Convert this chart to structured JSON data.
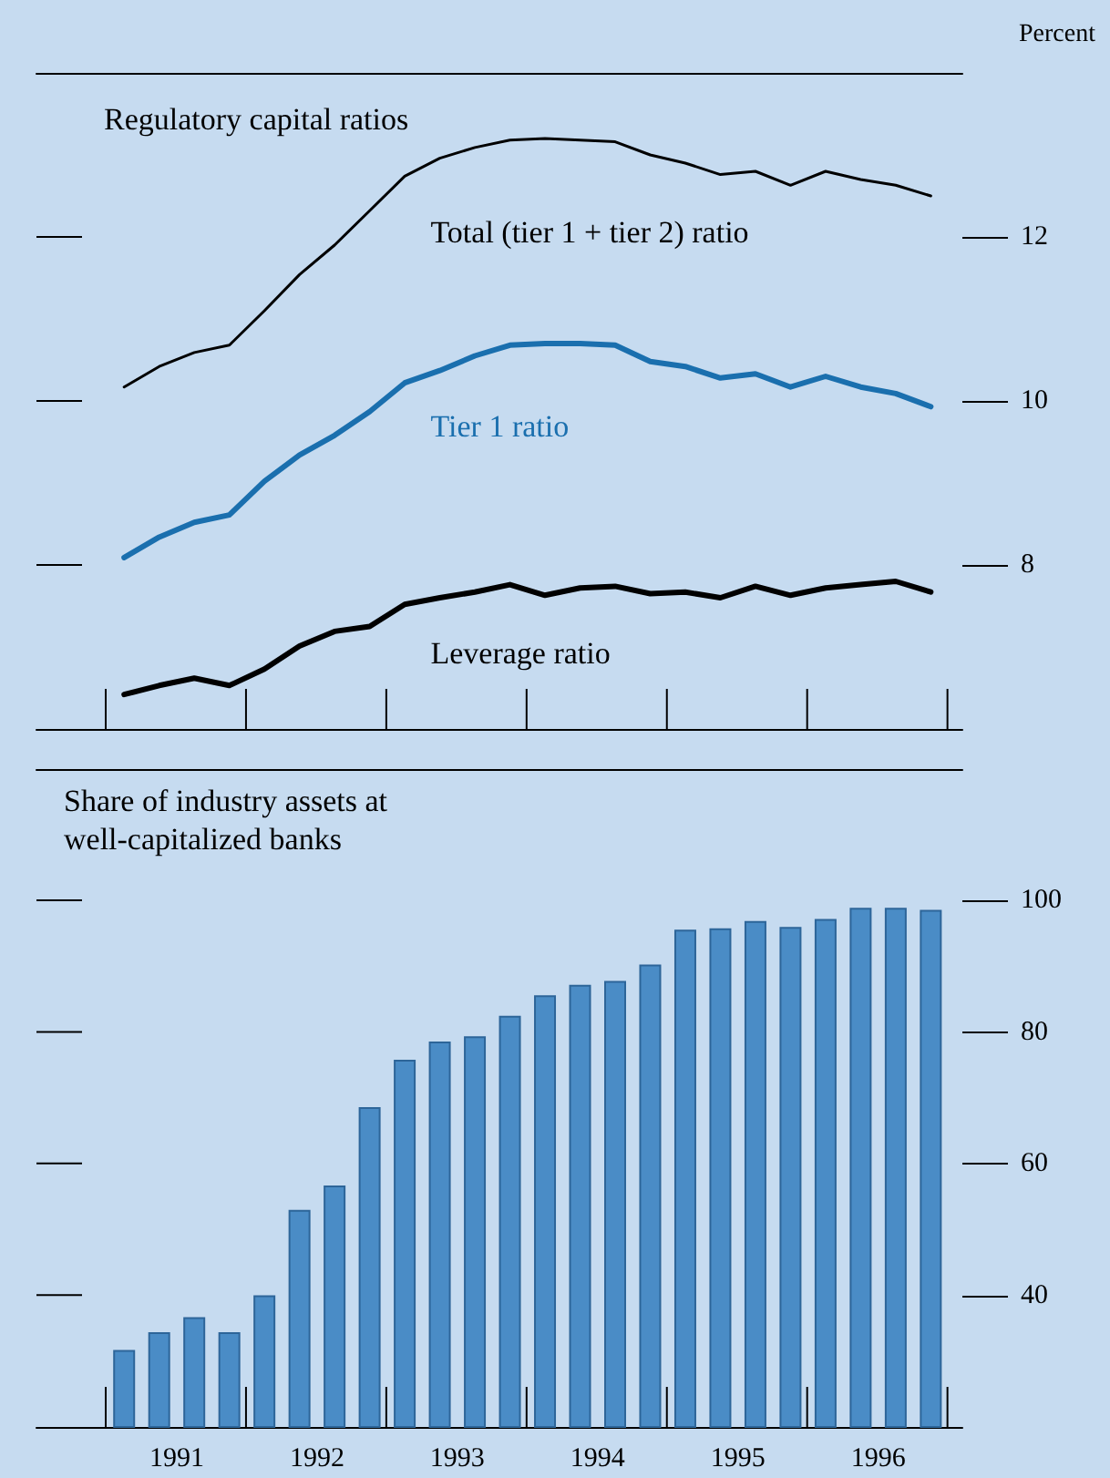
{
  "chart_data": [
    {
      "type": "line",
      "title": "Regulatory capital ratios",
      "ylabel": "Percent",
      "x": [
        1991.125,
        1991.375,
        1991.625,
        1991.875,
        1992.125,
        1992.375,
        1992.625,
        1992.875,
        1993.125,
        1993.375,
        1993.625,
        1993.875,
        1994.125,
        1994.375,
        1994.625,
        1994.875,
        1995.125,
        1995.375,
        1995.625,
        1995.875,
        1996.125,
        1996.375,
        1996.625,
        1996.875
      ],
      "series": [
        {
          "name": "Total (tier 1 + tier 2) ratio",
          "color": "#000000",
          "values": [
            10.17,
            10.42,
            10.59,
            10.68,
            11.1,
            11.54,
            11.9,
            12.32,
            12.74,
            12.96,
            13.09,
            13.18,
            13.2,
            13.18,
            13.16,
            13.0,
            12.9,
            12.76,
            12.8,
            12.63,
            12.8,
            12.7,
            12.63,
            12.5
          ]
        },
        {
          "name": "Tier 1 ratio",
          "color": "#1a6fae",
          "values": [
            8.09,
            8.34,
            8.52,
            8.61,
            9.02,
            9.34,
            9.58,
            9.87,
            10.22,
            10.37,
            10.55,
            10.68,
            10.7,
            10.7,
            10.68,
            10.48,
            10.42,
            10.28,
            10.33,
            10.17,
            10.3,
            10.17,
            10.09,
            9.93
          ]
        },
        {
          "name": "Leverage ratio",
          "color": "#000000",
          "values": [
            6.42,
            6.53,
            6.62,
            6.53,
            6.73,
            7.01,
            7.19,
            7.25,
            7.52,
            7.6,
            7.67,
            7.76,
            7.63,
            7.72,
            7.74,
            7.65,
            7.67,
            7.6,
            7.74,
            7.63,
            7.72,
            7.76,
            7.8,
            7.67
          ]
        }
      ],
      "xlim": [
        1990.5,
        1997.1
      ],
      "ylim": [
        6,
        14
      ],
      "yticks": [
        8,
        10,
        12
      ],
      "tick_labels": "y",
      "grid": false,
      "legend": false,
      "marker": "none",
      "line_style": "solid"
    },
    {
      "type": "bar",
      "title": "Share of industry assets at\nwell-capitalized banks",
      "color": "#4a8cc6",
      "x": [
        1991.125,
        1991.375,
        1991.625,
        1991.875,
        1992.125,
        1992.375,
        1992.625,
        1992.875,
        1993.125,
        1993.375,
        1993.625,
        1993.875,
        1994.125,
        1994.375,
        1994.625,
        1994.875,
        1995.125,
        1995.375,
        1995.625,
        1995.875,
        1996.125,
        1996.375,
        1996.625,
        1996.875
      ],
      "values": [
        31.7,
        34.4,
        36.7,
        34.4,
        40,
        53,
        56.7,
        68.6,
        75.8,
        78.6,
        79.4,
        82.5,
        85.6,
        87.2,
        87.8,
        90.3,
        95.6,
        95.8,
        96.9,
        96,
        97.2,
        98.9,
        98.9,
        98.6
      ],
      "xlim": [
        1990.5,
        1997.1
      ],
      "xticks": [
        {
          "value": 1991.5,
          "label": "1991"
        },
        {
          "value": 1992.5,
          "label": "1992"
        },
        {
          "value": 1993.5,
          "label": "1993"
        },
        {
          "value": 1994.5,
          "label": "1994"
        },
        {
          "value": 1995.5,
          "label": "1995"
        },
        {
          "value": 1996.5,
          "label": "1996"
        }
      ],
      "ylim": [
        20,
        120
      ],
      "yticks": [
        40,
        60,
        80,
        100
      ],
      "grid": false,
      "legend": false
    }
  ]
}
